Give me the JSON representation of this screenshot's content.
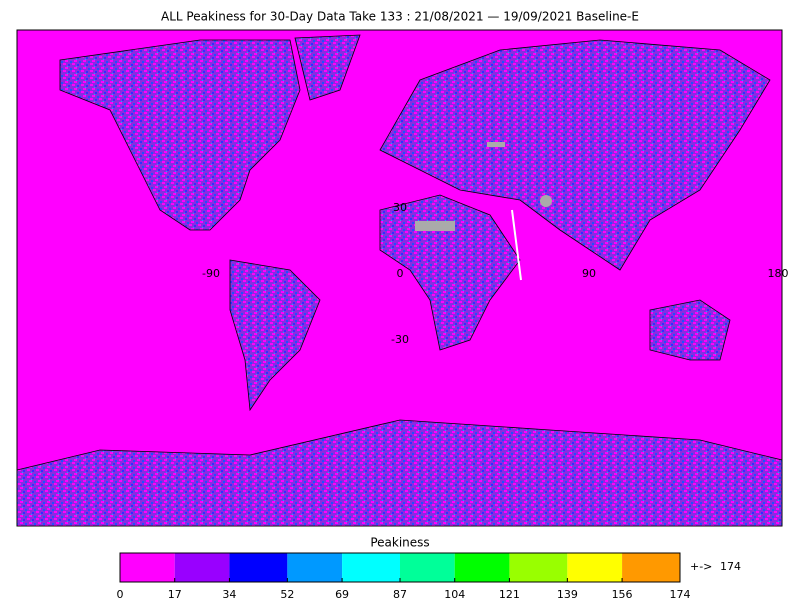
{
  "title": "ALL Peakiness for 30-Day Data Take 133 : 21/08/2021 — 19/09/2021 Baseline-E",
  "map": {
    "lon_ticks": [
      -90,
      0,
      90,
      180
    ],
    "lat_ticks": [
      30,
      -30
    ]
  },
  "colorbar": {
    "title": "Peakiness",
    "ticks": [
      0,
      17,
      34,
      52,
      69,
      87,
      104,
      121,
      139,
      156,
      174
    ],
    "colors": [
      "#ff00ff",
      "#9900ff",
      "#0000ff",
      "#0099ff",
      "#00ffff",
      "#00ff99",
      "#00ff00",
      "#99ff00",
      "#ffff00",
      "#ff9900"
    ],
    "overflow_arrow": "+->",
    "overflow_label": "174",
    "overflow_color": "#ff9900"
  }
}
